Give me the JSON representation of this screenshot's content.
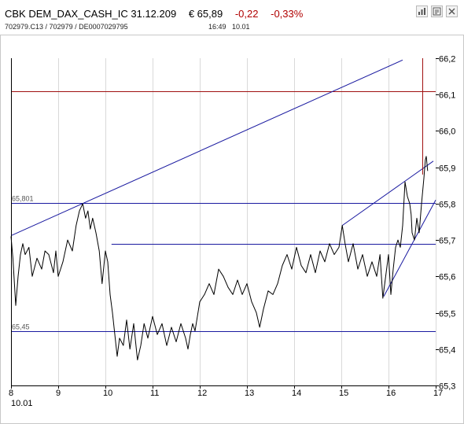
{
  "header": {
    "instrument": "CBK DEM_DAX_CASH_IC 31.12.209",
    "price": "€ 65,89",
    "change": "-0,22",
    "change_pct": "-0,33%",
    "ids": "702979.C13  /  702979  /  DE0007029795",
    "time": "16:49",
    "date": "10.01"
  },
  "toolbar": {
    "icons": [
      "bar-chart-icon",
      "news-icon",
      "close-icon"
    ]
  },
  "colors": {
    "price_line": "#000000",
    "trend_line": "#1a1aa0",
    "resistance_line": "#a01010",
    "grid": "#d9d9d9",
    "change": "#b00000"
  },
  "chart_data": {
    "type": "line",
    "title": "",
    "xlabel": "",
    "ylabel": "",
    "x_ticks": [
      "8",
      "9",
      "10",
      "11",
      "12",
      "13",
      "14",
      "15",
      "16",
      "17"
    ],
    "x_sub_label": "10.01",
    "xlim": [
      8,
      17
    ],
    "ylim": [
      65.3,
      66.2
    ],
    "y_ticks": [
      "65,3",
      "65,4",
      "65,5",
      "65,6",
      "65,7",
      "65,8",
      "65,9",
      "66,0",
      "66,1",
      "66,2"
    ],
    "y_tick_values": [
      65.3,
      65.4,
      65.5,
      65.6,
      65.7,
      65.8,
      65.9,
      66.0,
      66.1,
      66.2
    ],
    "grid": "vertical",
    "series": [
      {
        "x": [
          8.0,
          8.04,
          8.1,
          8.15,
          8.2,
          8.25,
          8.3,
          8.38,
          8.45,
          8.55,
          8.65,
          8.72,
          8.8,
          8.9,
          8.95,
          9.0,
          9.05,
          9.1,
          9.2,
          9.3,
          9.38,
          9.45,
          9.52,
          9.58,
          9.63,
          9.68,
          9.73,
          9.8,
          9.87,
          9.93,
          10.0,
          10.05,
          10.1,
          10.15,
          10.2,
          10.25,
          10.3,
          10.38,
          10.45,
          10.52,
          10.6,
          10.68,
          10.75,
          10.82,
          10.9,
          11.0,
          11.1,
          11.2,
          11.3,
          11.4,
          11.5,
          11.6,
          11.7,
          11.75,
          11.8,
          11.85,
          11.9,
          12.0,
          12.1,
          12.2,
          12.3,
          12.4,
          12.5,
          12.6,
          12.7,
          12.8,
          12.9,
          13.0,
          13.1,
          13.2,
          13.27,
          13.35,
          13.45,
          13.55,
          13.65,
          13.75,
          13.85,
          13.95,
          14.05,
          14.15,
          14.25,
          14.35,
          14.45,
          14.55,
          14.65,
          14.75,
          14.85,
          14.95,
          15.02,
          15.08,
          15.15,
          15.25,
          15.35,
          15.45,
          15.55,
          15.65,
          15.75,
          15.82,
          15.88,
          15.93,
          16.0,
          16.05,
          16.1,
          16.15,
          16.2,
          16.25,
          16.3,
          16.35,
          16.4,
          16.45,
          16.48,
          16.5,
          16.55,
          16.6,
          16.65,
          16.7,
          16.75,
          16.78,
          16.8,
          16.83
        ],
        "y": [
          65.71,
          65.65,
          65.52,
          65.6,
          65.66,
          65.69,
          65.66,
          65.68,
          65.6,
          65.65,
          65.62,
          65.67,
          65.66,
          65.61,
          65.67,
          65.6,
          65.62,
          65.64,
          65.7,
          65.67,
          65.74,
          65.78,
          65.8,
          65.76,
          65.78,
          65.73,
          65.76,
          65.72,
          65.67,
          65.58,
          65.67,
          65.64,
          65.55,
          65.5,
          65.44,
          65.38,
          65.43,
          65.41,
          65.48,
          65.4,
          65.47,
          65.37,
          65.41,
          65.47,
          65.43,
          65.49,
          65.44,
          65.47,
          65.41,
          65.46,
          65.42,
          65.47,
          65.43,
          65.4,
          65.44,
          65.47,
          65.45,
          65.53,
          65.55,
          65.58,
          65.55,
          65.62,
          65.6,
          65.57,
          65.55,
          65.59,
          65.55,
          65.58,
          65.53,
          65.5,
          65.46,
          65.51,
          65.56,
          65.55,
          65.58,
          65.63,
          65.66,
          65.62,
          65.68,
          65.63,
          65.61,
          65.66,
          65.61,
          65.67,
          65.64,
          65.69,
          65.66,
          65.68,
          65.74,
          65.69,
          65.64,
          65.69,
          65.62,
          65.66,
          65.6,
          65.64,
          65.6,
          65.66,
          65.54,
          65.59,
          65.66,
          65.55,
          65.62,
          65.68,
          65.7,
          65.68,
          65.74,
          65.86,
          65.82,
          65.8,
          65.77,
          65.72,
          65.7,
          65.76,
          65.72,
          65.8,
          65.87,
          65.92,
          65.93,
          65.89
        ]
      }
    ],
    "horizontal_levels": [
      {
        "value": 65.801,
        "label": "65,801",
        "kind": "trend",
        "x_start": 8.0,
        "x_end": 17.0
      },
      {
        "value": 65.45,
        "label": "65,45",
        "kind": "trend",
        "x_start": 8.0,
        "x_end": 17.0
      },
      {
        "value": 65.69,
        "label": "",
        "kind": "trend",
        "x_start": 10.13,
        "x_end": 17.0
      },
      {
        "value": 66.11,
        "label": "",
        "kind": "resistance",
        "x_start": 8.0,
        "x_end": 17.0
      }
    ],
    "trend_lines": [
      {
        "x1": 8.0,
        "y1": 65.712,
        "x2": 16.3,
        "y2": 66.195
      },
      {
        "x1": 15.02,
        "y1": 65.74,
        "x2": 16.95,
        "y2": 65.917
      },
      {
        "x1": 15.9,
        "y1": 65.545,
        "x2": 17.0,
        "y2": 65.81
      }
    ],
    "vertical_markers": [
      {
        "x": 16.72,
        "y_from": 65.88,
        "y_to": 66.2,
        "kind": "resistance"
      }
    ]
  }
}
